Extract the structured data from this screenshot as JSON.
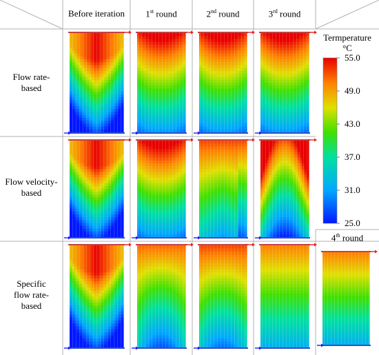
{
  "columns": [
    {
      "main": "Before iteration",
      "sup": "",
      "rest": ""
    },
    {
      "main": "1",
      "sup": "st",
      "rest": " round"
    },
    {
      "main": "2",
      "sup": "nd",
      "rest": " round"
    },
    {
      "main": "3",
      "sup": "rd",
      "rest": " round"
    },
    {
      "main": "4",
      "sup": "th",
      "rest": " round"
    }
  ],
  "rows": [
    {
      "lines": [
        "Flow rate-",
        "based"
      ]
    },
    {
      "lines": [
        "Flow velocity-",
        "based"
      ]
    },
    {
      "lines": [
        "Specific",
        "flow rate-",
        "based"
      ]
    }
  ],
  "colorbar": {
    "title_line1": "Termperature",
    "title_line2": "°C",
    "ticks": [
      "55.0",
      "49.0",
      "43.0",
      "37.0",
      "31.0",
      "25.0"
    ],
    "min": 25.0,
    "max": 55.0
  },
  "colors": {
    "grid": "#b0b0b0",
    "arrow_in": "#1a1aff",
    "arrow_out": "#e82020"
  },
  "panels": [
    {
      "row": 0,
      "col": 0,
      "pattern": "bowl-deep"
    },
    {
      "row": 0,
      "col": 1,
      "pattern": "bowl-mid"
    },
    {
      "row": 0,
      "col": 2,
      "pattern": "bowl-mid"
    },
    {
      "row": 0,
      "col": 3,
      "pattern": "bowl-mid"
    },
    {
      "row": 1,
      "col": 0,
      "pattern": "bowl-deep"
    },
    {
      "row": 1,
      "col": 1,
      "pattern": "bowl-mid"
    },
    {
      "row": 1,
      "col": 2,
      "pattern": "tent"
    },
    {
      "row": 1,
      "col": 3,
      "pattern": "tent-hot-sides"
    },
    {
      "row": 2,
      "col": 0,
      "pattern": "bowl-deep"
    },
    {
      "row": 2,
      "col": 1,
      "pattern": "dome"
    },
    {
      "row": 2,
      "col": 2,
      "pattern": "dome-warm"
    },
    {
      "row": 2,
      "col": 3,
      "pattern": "flat"
    },
    {
      "row": 2,
      "col": 4,
      "pattern": "flat"
    }
  ]
}
